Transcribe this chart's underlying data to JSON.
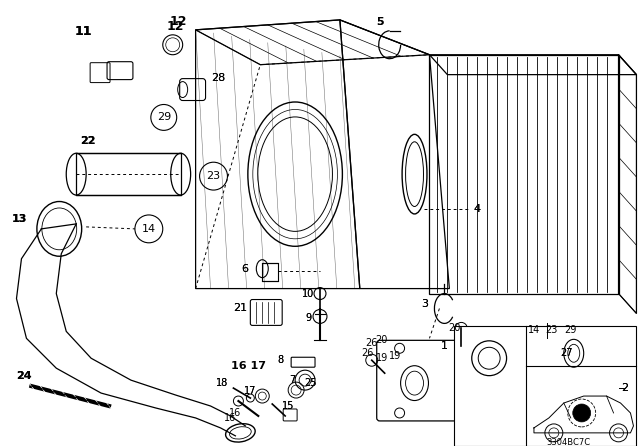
{
  "bg_color": "#ffffff",
  "line_color": "#000000",
  "diagram_code": "3304BC7C"
}
